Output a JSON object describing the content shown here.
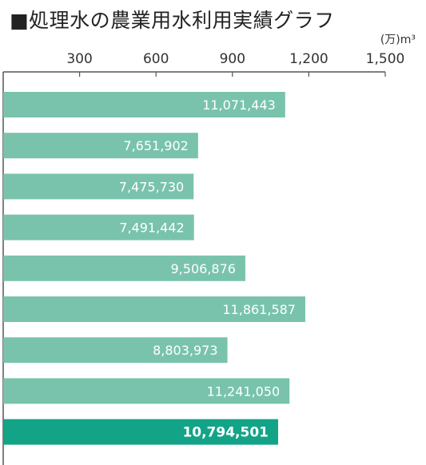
{
  "title": "■処理水の農業用水利用実績グラフ",
  "chart_data": {
    "type": "bar",
    "orientation": "horizontal",
    "title": "■処理水の農業用水利用実績グラフ",
    "unit_label": "(万)m³",
    "xlim": [
      0,
      1500
    ],
    "xticks": [
      300,
      600,
      900,
      1200,
      1500
    ],
    "xtick_labels": [
      "300",
      "600",
      "900",
      "1,200",
      "1,500"
    ],
    "grid": false,
    "legend": "none",
    "values": [
      1107.1443,
      765.1902,
      747.573,
      749.1442,
      950.6876,
      1186.1587,
      880.3973,
      1124.105,
      1079.4501
    ],
    "labels": [
      "11,071,443",
      "7,651,902",
      "7,475,730",
      "7,491,442",
      "9,506,876",
      "11,861,587",
      "8,803,973",
      "11,241,050",
      "10,794,501"
    ],
    "colors": {
      "bar": "#79c3ad",
      "bar_highlight": "#13a487",
      "axis": "#555555"
    },
    "highlight_index": 8
  }
}
